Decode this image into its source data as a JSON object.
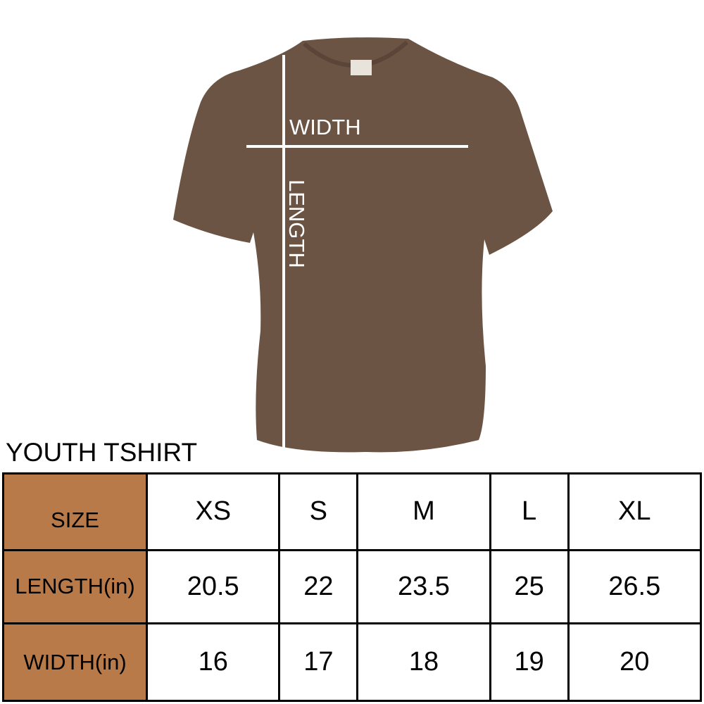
{
  "image": {
    "shirt_color": "#6b5444",
    "measure_labels": {
      "width": "WIDTH",
      "length": "LENGTH"
    }
  },
  "chart_data": {
    "type": "table",
    "title": "YOUTH TSHIRT",
    "header_color": "#b97a4a",
    "columns": [
      "SIZE",
      "XS",
      "S",
      "M",
      "L",
      "XL"
    ],
    "rows": [
      {
        "label": "LENGTH(in)",
        "values": [
          "20.5",
          "22",
          "23.5",
          "25",
          "26.5"
        ]
      },
      {
        "label": "WIDTH(in)",
        "values": [
          "16",
          "17",
          "18",
          "19",
          "20"
        ]
      }
    ]
  }
}
